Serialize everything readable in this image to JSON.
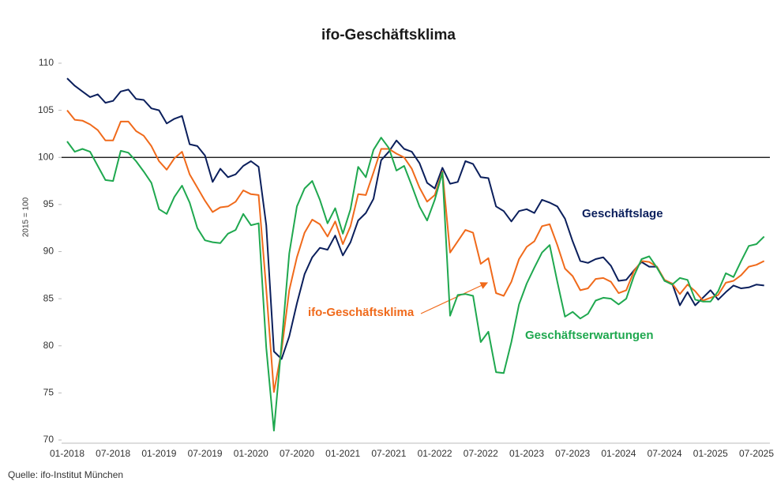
{
  "chart_data": {
    "type": "line",
    "title": "ifo-Geschäftsklima",
    "ylabel": "2015 = 100",
    "source": "Quelle: ifo-Institut München",
    "categories": [
      "01-2018",
      null,
      null,
      null,
      null,
      null,
      "07-2018",
      null,
      null,
      null,
      null,
      null,
      "01-2019",
      null,
      null,
      null,
      null,
      null,
      "07-2019",
      null,
      null,
      null,
      null,
      null,
      "01-2020",
      null,
      null,
      null,
      null,
      null,
      "07-2020",
      null,
      null,
      null,
      null,
      null,
      "01-2021",
      null,
      null,
      null,
      null,
      null,
      "07-2021",
      null,
      null,
      null,
      null,
      null,
      "01-2022",
      null,
      null,
      null,
      null,
      null,
      "07-2022",
      null,
      null,
      null,
      null,
      null,
      "01-2023",
      null,
      null,
      null,
      null,
      null,
      "07-2023",
      null,
      null,
      null,
      null,
      null,
      "01-2024",
      null,
      null,
      null,
      null,
      null,
      "07-2024",
      null,
      null,
      null,
      null,
      null,
      "01-2025",
      null,
      null,
      null,
      null,
      null,
      "07-2025",
      null
    ],
    "series": [
      {
        "name": "Geschäftslage",
        "color": "#0b1f5c",
        "values": [
          108.4,
          107.6,
          107.0,
          106.4,
          106.7,
          105.8,
          106.0,
          107.0,
          107.2,
          106.2,
          106.1,
          105.2,
          105.0,
          103.6,
          104.1,
          104.4,
          101.4,
          101.2,
          100.2,
          97.4,
          98.8,
          97.9,
          98.2,
          99.1,
          99.6,
          99.0,
          92.8,
          79.4,
          78.6,
          81.0,
          84.5,
          87.6,
          89.4,
          90.4,
          90.2,
          91.7,
          89.6,
          91.0,
          93.3,
          94.1,
          95.6,
          99.7,
          100.6,
          101.8,
          100.9,
          100.6,
          99.4,
          97.3,
          96.7,
          98.9,
          97.2,
          97.4,
          99.6,
          99.3,
          97.9,
          97.8,
          94.8,
          94.3,
          93.2,
          94.3,
          94.5,
          94.1,
          95.5,
          95.2,
          94.8,
          93.5,
          91.1,
          89.0,
          88.8,
          89.2,
          89.4,
          88.5,
          86.9,
          87.0,
          88.0,
          88.9,
          88.4,
          88.4,
          86.9,
          86.6,
          84.3,
          85.7,
          84.3,
          85.1,
          85.9,
          84.9,
          85.7,
          86.4,
          86.1,
          86.2,
          86.5,
          86.4
        ]
      },
      {
        "name": "ifo-Geschäftsklima",
        "color": "#f06a1b",
        "values": [
          105.0,
          104.0,
          103.9,
          103.5,
          102.9,
          101.8,
          101.8,
          103.8,
          103.8,
          102.8,
          102.3,
          101.2,
          99.6,
          98.7,
          99.9,
          100.6,
          98.2,
          96.8,
          95.4,
          94.2,
          94.7,
          94.8,
          95.3,
          96.5,
          96.1,
          96.0,
          86.0,
          75.1,
          79.5,
          85.9,
          89.4,
          92.0,
          93.4,
          92.9,
          91.6,
          93.2,
          90.8,
          92.7,
          96.1,
          96.0,
          98.4,
          100.9,
          100.9,
          100.4,
          100.0,
          98.8,
          96.8,
          95.3,
          96.0,
          98.5,
          89.9,
          91.1,
          92.3,
          92.0,
          88.7,
          89.3,
          85.6,
          85.3,
          86.8,
          89.2,
          90.5,
          91.1,
          92.7,
          92.9,
          90.7,
          88.2,
          87.4,
          85.9,
          86.1,
          87.1,
          87.2,
          86.8,
          85.6,
          85.9,
          87.9,
          89.0,
          88.9,
          88.4,
          87.0,
          86.6,
          85.5,
          86.5,
          85.8,
          84.8,
          85.1,
          85.4,
          86.7,
          86.9,
          87.5,
          88.4,
          88.6,
          89.0
        ]
      },
      {
        "name": "Geschäftserwartungen",
        "color": "#1fa84f",
        "values": [
          101.7,
          100.6,
          100.9,
          100.6,
          99.1,
          97.6,
          97.5,
          100.7,
          100.5,
          99.6,
          98.5,
          97.3,
          94.5,
          94.0,
          95.8,
          97.0,
          95.2,
          92.5,
          91.2,
          91.0,
          90.9,
          91.9,
          92.3,
          94.0,
          92.8,
          93.0,
          79.8,
          71.0,
          80.2,
          89.8,
          94.8,
          96.7,
          97.5,
          95.5,
          93.0,
          94.6,
          91.9,
          94.5,
          99.0,
          97.9,
          100.8,
          102.1,
          101.0,
          98.6,
          99.1,
          97.0,
          94.8,
          93.3,
          95.5,
          98.4,
          83.2,
          85.4,
          85.5,
          85.3,
          80.4,
          81.5,
          77.2,
          77.1,
          80.4,
          84.4,
          86.6,
          88.3,
          89.9,
          90.7,
          86.8,
          83.1,
          83.6,
          82.9,
          83.4,
          84.8,
          85.1,
          85.0,
          84.4,
          85.0,
          87.4,
          89.2,
          89.5,
          88.3,
          86.9,
          86.5,
          87.2,
          87.0,
          84.9,
          84.7,
          84.7,
          85.8,
          87.7,
          87.3,
          89.0,
          90.6,
          90.8,
          91.6
        ]
      }
    ],
    "ylim": [
      70,
      110
    ],
    "yticks": [
      70,
      75,
      80,
      85,
      90,
      95,
      100,
      105,
      110
    ],
    "reference_line": 100,
    "grid": false
  }
}
